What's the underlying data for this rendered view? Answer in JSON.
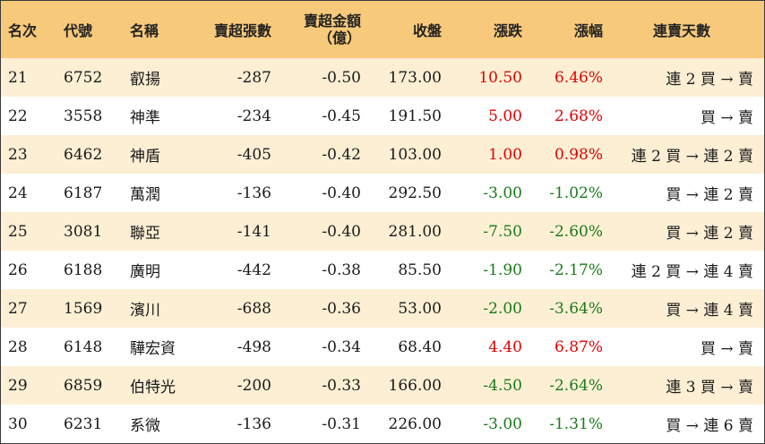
{
  "headers": {
    "rank": "名次",
    "code": "代號",
    "name": "名稱",
    "sell_lots": "賣超張數",
    "sell_amount_line1": "賣超金額",
    "sell_amount_line2": "（億）",
    "close": "收盤",
    "change": "漲跌",
    "change_pct": "漲幅",
    "streak": "連賣天數"
  },
  "colors": {
    "header_bg": "#f7c97a",
    "odd_row_bg": "#fcefd4",
    "up": "#e00000",
    "down": "#1a7a1a"
  },
  "rows": [
    {
      "rank": "21",
      "code": "6752",
      "name": "叡揚",
      "sell_lots": "-287",
      "sell_amount": "-0.50",
      "close": "173.00",
      "change": "10.50",
      "change_pct": "6.46%",
      "direction": "up",
      "streak": "連 2 買 → 賣"
    },
    {
      "rank": "22",
      "code": "3558",
      "name": "神準",
      "sell_lots": "-234",
      "sell_amount": "-0.45",
      "close": "191.50",
      "change": "5.00",
      "change_pct": "2.68%",
      "direction": "up",
      "streak": "買 → 賣"
    },
    {
      "rank": "23",
      "code": "6462",
      "name": "神盾",
      "sell_lots": "-405",
      "sell_amount": "-0.42",
      "close": "103.00",
      "change": "1.00",
      "change_pct": "0.98%",
      "direction": "up",
      "streak": "連 2 買 → 連 2 賣"
    },
    {
      "rank": "24",
      "code": "6187",
      "name": "萬潤",
      "sell_lots": "-136",
      "sell_amount": "-0.40",
      "close": "292.50",
      "change": "-3.00",
      "change_pct": "-1.02%",
      "direction": "down",
      "streak": "買 → 連 2 賣"
    },
    {
      "rank": "25",
      "code": "3081",
      "name": "聯亞",
      "sell_lots": "-141",
      "sell_amount": "-0.40",
      "close": "281.00",
      "change": "-7.50",
      "change_pct": "-2.60%",
      "direction": "down",
      "streak": "買 → 連 2 賣"
    },
    {
      "rank": "26",
      "code": "6188",
      "name": "廣明",
      "sell_lots": "-442",
      "sell_amount": "-0.38",
      "close": "85.50",
      "change": "-1.90",
      "change_pct": "-2.17%",
      "direction": "down",
      "streak": "連 2 買 → 連 4 賣"
    },
    {
      "rank": "27",
      "code": "1569",
      "name": "濱川",
      "sell_lots": "-688",
      "sell_amount": "-0.36",
      "close": "53.00",
      "change": "-2.00",
      "change_pct": "-3.64%",
      "direction": "down",
      "streak": "買 → 連 4 賣"
    },
    {
      "rank": "28",
      "code": "6148",
      "name": "驊宏資",
      "sell_lots": "-498",
      "sell_amount": "-0.34",
      "close": "68.40",
      "change": "4.40",
      "change_pct": "6.87%",
      "direction": "up",
      "streak": "買 → 賣"
    },
    {
      "rank": "29",
      "code": "6859",
      "name": "伯特光",
      "sell_lots": "-200",
      "sell_amount": "-0.33",
      "close": "166.00",
      "change": "-4.50",
      "change_pct": "-2.64%",
      "direction": "down",
      "streak": "連 3 買 → 賣"
    },
    {
      "rank": "30",
      "code": "6231",
      "name": "系微",
      "sell_lots": "-136",
      "sell_amount": "-0.31",
      "close": "226.00",
      "change": "-3.00",
      "change_pct": "-1.31%",
      "direction": "down",
      "streak": "買 → 連 6 賣"
    }
  ]
}
